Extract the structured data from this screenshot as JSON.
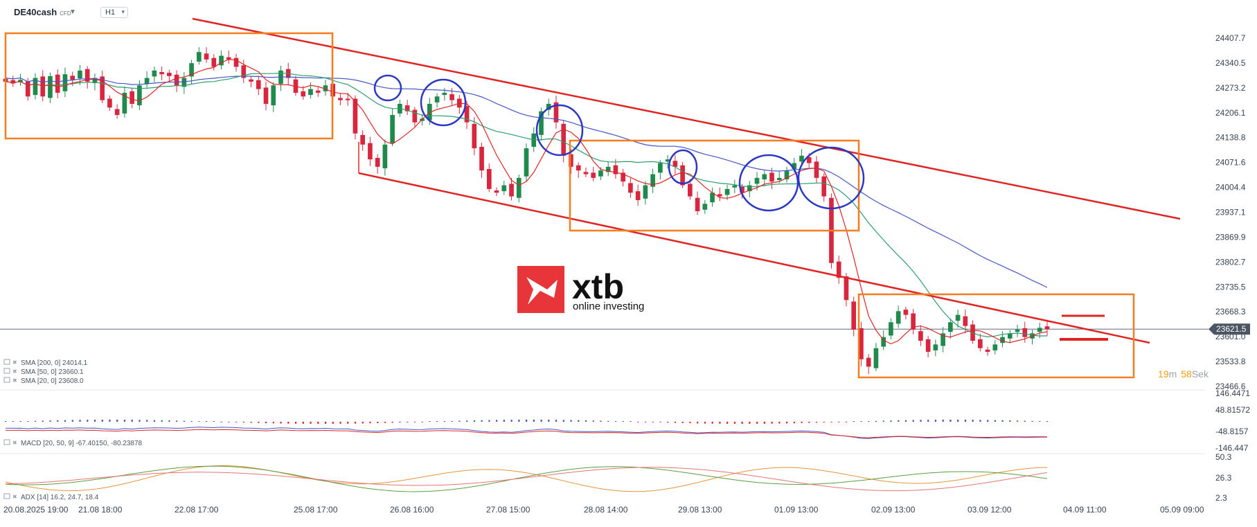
{
  "header": {
    "symbol": "DE40cash",
    "symbol_type": "CFD",
    "timeframe": "H1"
  },
  "logo": {
    "brand": "xtb",
    "tagline": "online investing",
    "color": "#e8353a"
  },
  "countdown": {
    "minutes": "19",
    "m_unit": "m",
    "seconds": "58",
    "s_unit": "Sek"
  },
  "price_axis": {
    "ticks": [
      "24407.7",
      "24340.5",
      "24273.2",
      "24206.1",
      "24138.8",
      "24071.6",
      "24004.4",
      "23937.1",
      "23869.9",
      "23802.7",
      "23735.5",
      "23668.3",
      "23601.0",
      "23533.8",
      "23466.6"
    ],
    "last_price": "23621.5"
  },
  "macd_axis": {
    "ticks": [
      "146.4471",
      "48.81572",
      "-48.8157",
      "-146.447"
    ]
  },
  "adx_axis": {
    "ticks": [
      "50.3",
      "26.3",
      "2.3"
    ]
  },
  "time_axis": {
    "labels": [
      "20.08.2025 19:00",
      "21.08 18:00",
      "22.08 17:00",
      "25.08 17:00",
      "26.08 16:00",
      "27.08 15:00",
      "28.08 14:00",
      "29.08 13:00",
      "01.09 13:00",
      "02.09 13:00",
      "03.09 12:00",
      "04.09 11:00",
      "05.09 09:00"
    ]
  },
  "legends": {
    "sma200": "SMA [200, 0] 24014.1",
    "sma50": "SMA [50, 0] 23660.1",
    "sma20": "SMA [20, 0] 23608.0",
    "macd": "MACD [20, 50, 9] -67.40150, -80.23878",
    "adx": "ADX [14] 16.2, 24.7, 18.4"
  },
  "colors": {
    "bull": "#1f8a4c",
    "bear": "#d7263d",
    "sma200": "#4455c7",
    "sma50": "#2a9d6e",
    "sma20": "#e02424",
    "channel": "#e02424",
    "box": "#f57c20",
    "circle": "#2a36c4",
    "countdown": "#f59e0b"
  },
  "chart_data": {
    "type": "candlestick",
    "ylim": [
      23466.6,
      24474.9
    ],
    "last": 23621.5,
    "candle_path": [
      [
        24290,
        24285,
        24295,
        24250,
        24300,
        24250,
        24305,
        24260,
        24310,
        24295,
        24320,
        24290,
        24300,
        24240,
        24220,
        24200,
        24260,
        24230,
        24280,
        24300,
        24320,
        24310,
        24305,
        24280,
        24300,
        24340,
        24370,
        24350,
        24330,
        24360,
        24350,
        24330,
        24300,
        24290,
        24270,
        24230,
        24280,
        24320,
        24300,
        24260,
        24250,
        24270,
        24260,
        24280,
        24250,
        24240
      ],
      [
        24240,
        24150,
        24120,
        24080,
        24060,
        24120,
        24200,
        24230,
        24210,
        24180,
        24190,
        24230,
        24250,
        24260,
        24240,
        24220,
        24180,
        24110,
        24050,
        24000,
        23990,
        24010,
        23980,
        24030,
        24110,
        24150,
        24210,
        24230,
        24180,
        24090,
        24060,
        24050,
        24040,
        24030,
        24050,
        24060,
        24040,
        24020,
        23990,
        23970,
        24010,
        24040,
        24070,
        24080,
        24060,
        24010,
        23980,
        23940,
        23960,
        23990,
        23980,
        24000,
        24010,
        23990,
        24010,
        24030,
        24040,
        24020,
        24030,
        24050,
        24070,
        24090,
        24070,
        24030,
        23980
      ],
      [
        23800,
        23760,
        23700,
        23620,
        23540,
        23520,
        23570,
        23600,
        23640,
        23670,
        23660,
        23620,
        23590,
        23560,
        23580,
        23610,
        23640,
        23660,
        23630,
        23590,
        23570,
        23560,
        23580,
        23600,
        23610,
        23620,
        23600,
        23610,
        23625,
        23621
      ]
    ],
    "levels": {
      "resistance_short": 23655,
      "support_short": 23617
    },
    "annotations": {
      "channel": "descending channel",
      "boxes": "consolidation zones",
      "circles": "rejections at moving averages"
    }
  }
}
